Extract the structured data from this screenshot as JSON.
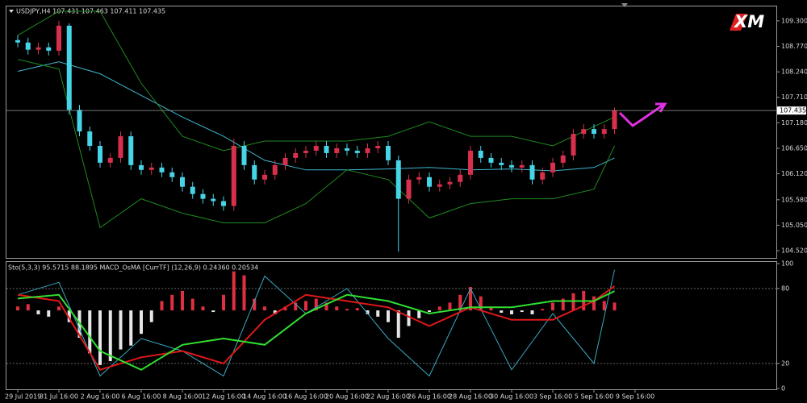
{
  "header": "USDJPY,H4  107.431 107.463 107.411 107.435",
  "logo": "XM",
  "chart_data": [
    {
      "type": "candlestick",
      "categories": [
        "29 Jul 2019",
        null,
        null,
        null,
        "31 Jul 16:00",
        null,
        null,
        null,
        "2 Aug 16:00",
        null,
        null,
        null,
        "6 Aug 16:00",
        null,
        null,
        null,
        "8 Aug 16:00",
        null,
        null,
        null,
        "12 Aug 16:00",
        null,
        null,
        null,
        "14 Aug 16:00",
        null,
        null,
        null,
        "16 Aug 16:00",
        null,
        null,
        null,
        "20 Aug 16:00",
        null,
        null,
        null,
        "22 Aug 16:00",
        null,
        null,
        null,
        "26 Aug 16:00",
        null,
        null,
        null,
        "28 Aug 16:00",
        null,
        null,
        null,
        "30 Aug 16:00",
        null,
        null,
        null,
        "3 Sep 16:00",
        null,
        null,
        null,
        "5 Sep 16:00",
        null,
        null,
        null,
        "9 Sep 16:00"
      ],
      "open": [
        108.9,
        108.85,
        108.7,
        108.75,
        108.68,
        109.2,
        107.45,
        107.0,
        106.7,
        106.35,
        106.45,
        106.9,
        106.3,
        106.2,
        106.25,
        106.15,
        106.05,
        105.85,
        105.7,
        105.6,
        105.55,
        105.45,
        106.7,
        106.3,
        106.0,
        106.1,
        106.3,
        106.45,
        106.55,
        106.6,
        106.7,
        106.55,
        106.65,
        106.6,
        106.55,
        106.65,
        106.7,
        106.4,
        105.6,
        106.0,
        106.05,
        105.85,
        105.9,
        105.95,
        106.1,
        106.6,
        106.45,
        106.35,
        106.3,
        106.25,
        106.3,
        106.0,
        106.15,
        106.35,
        106.5,
        106.95,
        107.05,
        106.95,
        107.05,
        null,
        null
      ],
      "high": [
        109.0,
        108.95,
        108.85,
        108.85,
        109.3,
        109.25,
        107.55,
        107.1,
        106.8,
        106.55,
        107.0,
        107.0,
        106.4,
        106.35,
        106.35,
        106.25,
        106.15,
        105.95,
        105.8,
        105.7,
        105.65,
        106.85,
        106.8,
        106.4,
        106.2,
        106.4,
        106.55,
        106.65,
        106.7,
        106.8,
        106.8,
        106.75,
        106.75,
        106.7,
        106.75,
        106.8,
        106.8,
        106.5,
        106.1,
        106.15,
        106.15,
        106.0,
        106.05,
        106.2,
        106.7,
        106.7,
        106.55,
        106.45,
        106.4,
        106.4,
        106.4,
        106.25,
        106.45,
        106.6,
        107.05,
        107.15,
        107.15,
        107.15,
        107.5,
        null,
        null
      ],
      "low": [
        108.75,
        108.6,
        108.6,
        108.58,
        108.58,
        107.35,
        106.9,
        106.6,
        106.25,
        106.25,
        106.35,
        106.2,
        106.1,
        106.1,
        106.05,
        105.95,
        105.75,
        105.6,
        105.5,
        105.45,
        105.35,
        105.35,
        106.2,
        105.9,
        105.9,
        106.0,
        106.2,
        106.35,
        106.45,
        106.5,
        106.45,
        106.45,
        106.5,
        106.45,
        106.45,
        106.55,
        106.3,
        104.5,
        105.5,
        105.9,
        105.75,
        105.75,
        105.8,
        105.85,
        106.0,
        106.35,
        106.25,
        106.2,
        106.15,
        106.15,
        105.9,
        105.9,
        106.05,
        106.25,
        106.4,
        106.85,
        106.85,
        106.85,
        106.95,
        null,
        null
      ],
      "close": [
        108.85,
        108.7,
        108.75,
        108.68,
        109.2,
        107.45,
        107.0,
        106.7,
        106.35,
        106.45,
        106.9,
        106.3,
        106.2,
        106.25,
        106.15,
        106.05,
        105.85,
        105.7,
        105.6,
        105.55,
        105.45,
        106.7,
        106.3,
        106.0,
        106.1,
        106.3,
        106.45,
        106.55,
        106.6,
        106.7,
        106.55,
        106.65,
        106.6,
        106.55,
        106.65,
        106.7,
        106.4,
        105.6,
        106.0,
        106.05,
        105.85,
        105.9,
        105.95,
        106.1,
        106.6,
        106.45,
        106.35,
        106.3,
        106.25,
        106.3,
        106.0,
        106.15,
        106.35,
        106.5,
        106.95,
        107.05,
        106.95,
        107.05,
        107.435,
        null,
        null
      ],
      "up_color": "#d8304c",
      "down_color": "#46d4e6",
      "lines": [
        {
          "color": "#3fb8d0",
          "x": [
            0,
            4,
            8,
            12,
            16,
            20,
            24,
            28,
            32,
            36,
            40,
            44,
            48,
            52,
            56,
            58
          ],
          "values": [
            108.25,
            108.45,
            108.2,
            107.75,
            107.3,
            106.9,
            106.4,
            106.2,
            106.2,
            106.22,
            106.25,
            106.2,
            106.22,
            106.18,
            106.25,
            106.45
          ]
        },
        {
          "color": "#1f8a1f",
          "x": [
            0,
            4,
            8,
            12,
            16,
            20,
            24,
            28,
            32,
            36,
            40,
            44,
            48,
            52,
            56,
            58
          ],
          "values": [
            109.0,
            109.5,
            109.5,
            108.0,
            106.9,
            106.6,
            106.8,
            106.8,
            106.8,
            106.9,
            107.2,
            106.9,
            106.9,
            106.7,
            107.1,
            107.3
          ]
        },
        {
          "color": "#1f8a1f",
          "x": [
            0,
            4,
            8,
            12,
            16,
            20,
            24,
            28,
            32,
            36,
            40,
            44,
            48,
            52,
            56,
            58
          ],
          "values": [
            108.5,
            108.3,
            105.0,
            105.6,
            105.3,
            105.1,
            105.1,
            105.5,
            106.2,
            106.0,
            105.2,
            105.5,
            105.6,
            105.6,
            105.8,
            106.7
          ]
        }
      ],
      "last_price": {
        "value": 107.435,
        "label": "107.435"
      },
      "ylim": [
        104.37,
        109.6
      ],
      "yticks": [
        {
          "value": 109.3,
          "label": "109.300"
        },
        {
          "value": 108.77,
          "label": "108.770"
        },
        {
          "value": 108.24,
          "label": "108.240"
        },
        {
          "value": 107.71,
          "label": "107.710"
        },
        {
          "value": 107.18,
          "label": "107.180"
        },
        {
          "value": 106.65,
          "label": "106.650"
        },
        {
          "value": 106.12,
          "label": "106.120"
        },
        {
          "value": 105.58,
          "label": "105.580"
        },
        {
          "value": 105.05,
          "label": "105.050"
        },
        {
          "value": 104.52,
          "label": "104.520"
        }
      ]
    },
    {
      "type": "oscillator",
      "title": "Sto(5,3,3) 95.5715 88.1895  MACD_OsMA [CurrTF] (12,26,9) 0.24360 0.20534",
      "histogram": {
        "axis": "y2",
        "up_color": "#e03040",
        "down_color": "#e6e6e6",
        "values": [
          0.05,
          0.08,
          -0.05,
          -0.08,
          0.05,
          -0.15,
          -0.35,
          -0.55,
          -0.7,
          -0.65,
          -0.5,
          -0.45,
          -0.3,
          -0.15,
          0.12,
          0.2,
          0.25,
          0.15,
          0.05,
          -0.02,
          0.2,
          0.5,
          0.45,
          0.15,
          0.05,
          -0.05,
          0.05,
          0.1,
          0.12,
          0.15,
          0.1,
          0.05,
          0.02,
          0.03,
          -0.05,
          -0.08,
          -0.15,
          -0.35,
          -0.2,
          -0.1,
          -0.02,
          0.05,
          0.1,
          0.2,
          0.3,
          0.18,
          0.05,
          -0.03,
          -0.05,
          -0.02,
          -0.05,
          0.02,
          0.1,
          0.15,
          0.22,
          0.25,
          0.18,
          0.12,
          0.1,
          null,
          null
        ]
      },
      "series": [
        {
          "color": "#3aa8c0",
          "width": 1,
          "x": [
            0,
            4,
            8,
            12,
            16,
            20,
            24,
            28,
            32,
            36,
            40,
            44,
            48,
            52,
            56,
            58
          ],
          "values": [
            75,
            85,
            10,
            40,
            30,
            10,
            90,
            60,
            80,
            40,
            10,
            80,
            15,
            60,
            20,
            95
          ]
        },
        {
          "color": "#e01818",
          "width": 2,
          "x": [
            0,
            4,
            8,
            12,
            16,
            20,
            24,
            28,
            32,
            36,
            40,
            44,
            48,
            52,
            56,
            58
          ],
          "values": [
            75,
            70,
            15,
            25,
            30,
            20,
            55,
            75,
            70,
            65,
            50,
            65,
            55,
            55,
            70,
            82
          ]
        },
        {
          "color": "#30e030",
          "width": 2,
          "x": [
            0,
            4,
            8,
            12,
            16,
            20,
            24,
            28,
            32,
            36,
            40,
            44,
            48,
            52,
            56,
            58
          ],
          "values": [
            72,
            75,
            30,
            15,
            35,
            40,
            35,
            60,
            75,
            70,
            60,
            65,
            65,
            70,
            70,
            78
          ]
        }
      ],
      "ylim": [
        0,
        100
      ],
      "yticks": [
        100,
        80,
        20,
        0
      ],
      "y2lim": [
        -1.0,
        0.6
      ]
    }
  ]
}
